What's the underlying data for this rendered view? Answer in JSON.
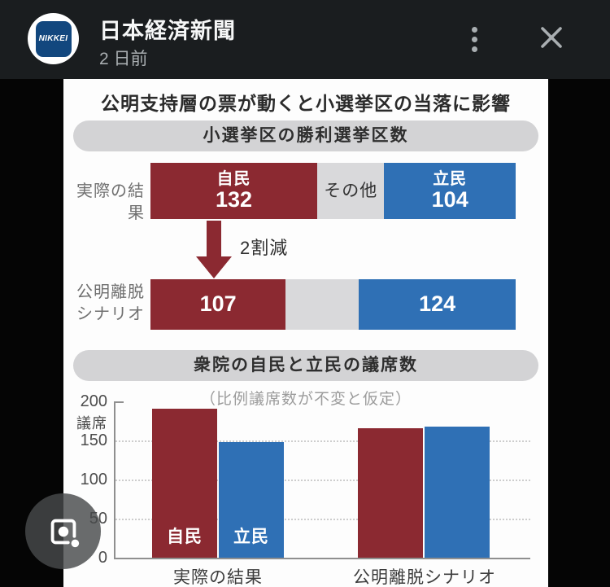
{
  "header": {
    "logo_text": "NIKKEI",
    "source_name": "日本経済新聞",
    "timestamp": "2 日前"
  },
  "infographic_title": "公明支持層の票が動くと小選挙区の当落に影響",
  "chart_data": [
    {
      "type": "bar",
      "variant": "horizontal-stacked",
      "title": "小選挙区の勝利選挙区数",
      "categories": [
        "実際の結果",
        "公明離脱シナリオ"
      ],
      "series": [
        {
          "name": "自民",
          "values": [
            132,
            107
          ],
          "color": "#8b2931"
        },
        {
          "name": "その他",
          "values": [
            53,
            58
          ],
          "color": "#d9d9db",
          "note": "segment widths estimated; numbers not printed on chart"
        },
        {
          "name": "立民",
          "values": [
            104,
            124
          ],
          "color": "#2f70b5"
        }
      ],
      "annotation": "2割減",
      "annotation_meaning": "arrow from 自民 132 down to 107"
    },
    {
      "type": "bar",
      "title": "衆院の自民と立民の議席数",
      "subtitle": "（比例議席数が不変と仮定）",
      "categories": [
        "実際の結果",
        "公明離脱シナリオ"
      ],
      "series": [
        {
          "name": "自民",
          "values": [
            191,
            166
          ],
          "color": "#8b2931"
        },
        {
          "name": "立民",
          "values": [
            148,
            168
          ],
          "color": "#2f70b5"
        }
      ],
      "ylabel": "議席",
      "ylim": [
        0,
        200
      ],
      "yticks": [
        0,
        50,
        100,
        150,
        200
      ],
      "grid": "horizontal dotted lines at 50, 100, 150",
      "legend_position": "labels inside first-group bars"
    }
  ],
  "icons": {
    "more_options": "kebab-vertical",
    "close": "x-cross",
    "camera_search": "google-lens-camera",
    "arrow": "down-arrow-red"
  },
  "colors": {
    "ldp_red": "#8b2931",
    "cdp_blue": "#2f70b5",
    "other_gray": "#d9d9db",
    "banner_gray": "#d3d3d5",
    "header_bg": "#1a1d1f"
  }
}
